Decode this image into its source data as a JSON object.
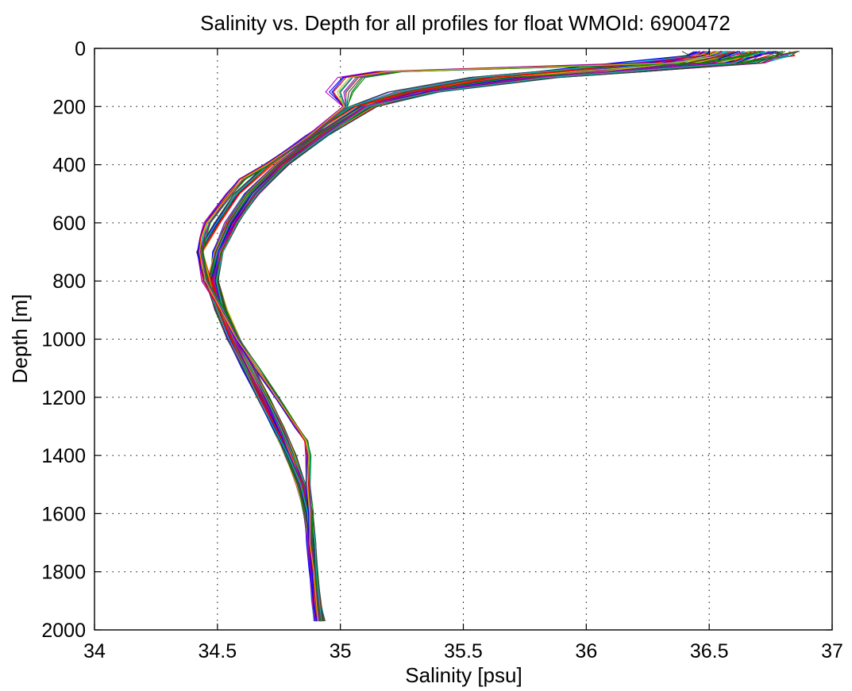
{
  "chart_data": {
    "type": "line",
    "title": "Salinity vs. Depth for all profiles for float WMOId: 6900472",
    "xlabel": "Salinity [psu]",
    "ylabel": "Depth [m]",
    "xlim": [
      34,
      37
    ],
    "ylim": [
      0,
      2000
    ],
    "y_reversed": true,
    "grid": true,
    "grid_style": "dotted",
    "x_ticks": [
      {
        "value": 34,
        "label": "34"
      },
      {
        "value": 34.5,
        "label": "34.5"
      },
      {
        "value": 35,
        "label": "35"
      },
      {
        "value": 35.5,
        "label": "35.5"
      },
      {
        "value": 36,
        "label": "36"
      },
      {
        "value": 36.5,
        "label": "36.5"
      },
      {
        "value": 37,
        "label": "37"
      }
    ],
    "y_ticks": [
      {
        "value": 0,
        "label": "0"
      },
      {
        "value": 200,
        "label": "200"
      },
      {
        "value": 400,
        "label": "400"
      },
      {
        "value": 600,
        "label": "600"
      },
      {
        "value": 800,
        "label": "800"
      },
      {
        "value": 1000,
        "label": "1000"
      },
      {
        "value": 1200,
        "label": "1200"
      },
      {
        "value": 1400,
        "label": "1400"
      },
      {
        "value": 1600,
        "label": "1600"
      },
      {
        "value": 1800,
        "label": "1800"
      },
      {
        "value": 2000,
        "label": "2000"
      }
    ],
    "series_colors": [
      "#0000ff",
      "#008000",
      "#ff0000",
      "#00bfbf",
      "#bf00bf",
      "#bfbf00",
      "#404040"
    ],
    "series": [
      {
        "color": "#0000ff",
        "depth": [
          10,
          25,
          50,
          80,
          100,
          150,
          200,
          300,
          400,
          500,
          600,
          700,
          800,
          900,
          1000,
          1100,
          1200,
          1300,
          1400,
          1500,
          1600,
          1700,
          1800,
          1900,
          1970
        ],
        "salinity": [
          36.72,
          36.7,
          36.58,
          36.05,
          35.75,
          35.32,
          35.12,
          34.92,
          34.76,
          34.64,
          34.56,
          34.5,
          34.49,
          34.53,
          34.58,
          34.64,
          34.7,
          34.76,
          34.81,
          34.85,
          34.87,
          34.88,
          34.89,
          34.9,
          34.91
        ]
      },
      {
        "color": "#008000",
        "depth": [
          10,
          25,
          50,
          80,
          100,
          150,
          200,
          300,
          400,
          500,
          600,
          700,
          800,
          900,
          1000,
          1100,
          1200,
          1300,
          1400,
          1500,
          1600,
          1700,
          1800,
          1900,
          1970
        ],
        "salinity": [
          36.55,
          36.48,
          36.3,
          35.9,
          35.62,
          35.28,
          35.08,
          34.9,
          34.74,
          34.62,
          34.54,
          34.49,
          34.48,
          34.52,
          34.57,
          34.63,
          34.69,
          34.75,
          34.8,
          34.84,
          34.86,
          34.87,
          34.88,
          34.89,
          34.9
        ]
      },
      {
        "color": "#ff0000",
        "depth": [
          10,
          25,
          50,
          80,
          100,
          150,
          200,
          300,
          400,
          500,
          600,
          700,
          800,
          900,
          1000,
          1100,
          1200,
          1300,
          1400,
          1500,
          1600,
          1700,
          1800,
          1900,
          1970
        ],
        "salinity": [
          36.78,
          36.74,
          36.64,
          36.2,
          35.85,
          35.36,
          35.14,
          34.94,
          34.78,
          34.66,
          34.57,
          34.51,
          34.48,
          34.51,
          34.56,
          34.62,
          34.68,
          34.74,
          34.79,
          34.84,
          34.87,
          34.89,
          34.9,
          34.91,
          34.93
        ]
      },
      {
        "color": "#00bfbf",
        "depth": [
          10,
          25,
          50,
          80,
          100,
          150,
          200,
          300,
          400,
          500,
          600,
          700,
          800,
          900,
          1000,
          1100,
          1200,
          1300,
          1400,
          1500,
          1600,
          1700,
          1800,
          1900,
          1970
        ],
        "salinity": [
          36.62,
          36.6,
          36.5,
          36.1,
          35.7,
          35.3,
          35.1,
          34.91,
          34.75,
          34.63,
          34.55,
          34.5,
          34.47,
          34.5,
          34.55,
          34.61,
          34.67,
          34.73,
          34.78,
          34.83,
          34.86,
          34.88,
          34.89,
          34.9,
          34.92
        ]
      },
      {
        "color": "#bf00bf",
        "depth": [
          10,
          25,
          50,
          80,
          100,
          150,
          200,
          300,
          400,
          500,
          600,
          700,
          800,
          900,
          1000,
          1100,
          1200,
          1300,
          1400,
          1500,
          1600,
          1700,
          1800,
          1900,
          1970
        ],
        "salinity": [
          36.5,
          36.45,
          36.25,
          35.85,
          35.58,
          35.25,
          35.05,
          34.87,
          34.71,
          34.58,
          34.5,
          34.43,
          34.46,
          34.5,
          34.55,
          34.61,
          34.67,
          34.73,
          34.79,
          34.84,
          34.87,
          34.88,
          34.89,
          34.9,
          34.91
        ]
      },
      {
        "color": "#bfbf00",
        "depth": [
          10,
          25,
          50,
          80,
          100,
          150,
          200,
          300,
          400,
          500,
          600,
          700,
          800,
          900,
          1000,
          1100,
          1200,
          1300,
          1400,
          1500,
          1600,
          1700,
          1800,
          1900,
          1970
        ],
        "salinity": [
          36.68,
          36.65,
          36.55,
          36.12,
          35.8,
          35.34,
          35.1,
          34.93,
          34.77,
          34.65,
          34.57,
          34.51,
          34.49,
          34.52,
          34.57,
          34.63,
          34.69,
          34.75,
          34.8,
          34.85,
          34.88,
          34.89,
          34.9,
          34.91,
          34.92
        ]
      },
      {
        "color": "#404040",
        "depth": [
          10,
          25,
          50,
          80,
          100,
          150,
          200,
          300,
          400,
          450,
          500,
          600,
          650,
          700,
          800,
          900,
          1000,
          1100,
          1200,
          1300,
          1350,
          1400,
          1500,
          1600,
          1700,
          1800,
          1900,
          1970
        ],
        "salinity": [
          36.58,
          36.52,
          36.35,
          35.2,
          35.05,
          35.0,
          35.02,
          34.88,
          34.7,
          34.6,
          34.55,
          34.46,
          34.44,
          34.43,
          34.45,
          34.52,
          34.58,
          34.66,
          34.74,
          34.82,
          34.86,
          34.87,
          34.87,
          34.88,
          34.88,
          34.89,
          34.9,
          34.91
        ]
      }
    ]
  }
}
